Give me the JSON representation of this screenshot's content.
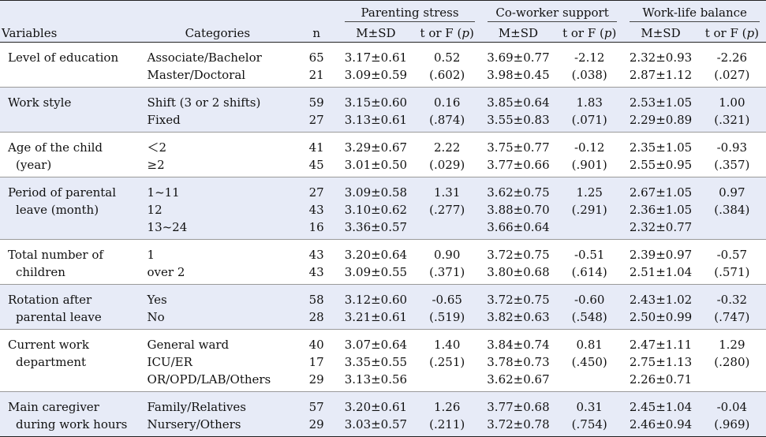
{
  "header": {
    "variables": "Variables",
    "categories": "Categories",
    "n": "n",
    "groups": [
      "Parenting stress",
      "Co-worker support",
      "Work-life balance"
    ],
    "msd": "M±SD",
    "test_prefix": "t or F (",
    "test_p": "p",
    "test_suffix": ")"
  },
  "rows": [
    {
      "variable": [
        "Level of education"
      ],
      "categories": [
        "Associate/Bachelor",
        "Master/Doctoral"
      ],
      "n": [
        "65",
        "21"
      ],
      "ps_msd": [
        "3.17±0.61",
        "3.09±0.59"
      ],
      "ps_t": [
        "0.52",
        "(.602)"
      ],
      "cs_msd": [
        "3.69±0.77",
        "3.98±0.45"
      ],
      "cs_t": [
        "-2.12",
        "(.038)"
      ],
      "wl_msd": [
        "2.32±0.93",
        "2.87±1.12"
      ],
      "wl_t": [
        "-2.26",
        "(.027)"
      ]
    },
    {
      "variable": [
        "Work style"
      ],
      "categories": [
        "Shift (3 or 2 shifts)",
        "Fixed"
      ],
      "n": [
        "59",
        "27"
      ],
      "ps_msd": [
        "3.15±0.60",
        "3.13±0.61"
      ],
      "ps_t": [
        "0.16",
        "(.874)"
      ],
      "cs_msd": [
        "3.85±0.64",
        "3.55±0.83"
      ],
      "cs_t": [
        "1.83",
        "(.071)"
      ],
      "wl_msd": [
        "2.53±1.05",
        "2.29±0.89"
      ],
      "wl_t": [
        "1.00",
        "(.321)"
      ]
    },
    {
      "variable": [
        "Age of the child",
        "(year)"
      ],
      "categories": [
        "＜2",
        "≥2"
      ],
      "n": [
        "41",
        "45"
      ],
      "ps_msd": [
        "3.29±0.67",
        "3.01±0.50"
      ],
      "ps_t": [
        "2.22",
        "(.029)"
      ],
      "cs_msd": [
        "3.75±0.77",
        "3.77±0.66"
      ],
      "cs_t": [
        "-0.12",
        "(.901)"
      ],
      "wl_msd": [
        "2.35±1.05",
        "2.55±0.95"
      ],
      "wl_t": [
        "-0.93",
        "(.357)"
      ]
    },
    {
      "variable": [
        "Period of parental",
        "leave (month)"
      ],
      "categories": [
        "1~11",
        "12",
        "13~24"
      ],
      "n": [
        "27",
        "43",
        "16"
      ],
      "ps_msd": [
        "3.09±0.58",
        "3.10±0.62",
        "3.36±0.57"
      ],
      "ps_t": [
        "1.31",
        "(.277)"
      ],
      "cs_msd": [
        "3.62±0.75",
        "3.88±0.70",
        "3.66±0.64"
      ],
      "cs_t": [
        "1.25",
        "(.291)"
      ],
      "wl_msd": [
        "2.67±1.05",
        "2.36±1.05",
        "2.32±0.77"
      ],
      "wl_t": [
        "0.97",
        "(.384)"
      ]
    },
    {
      "variable": [
        "Total number of",
        "children"
      ],
      "categories": [
        "1",
        "over 2"
      ],
      "n": [
        "43",
        "43"
      ],
      "ps_msd": [
        "3.20±0.64",
        "3.09±0.55"
      ],
      "ps_t": [
        "0.90",
        "(.371)"
      ],
      "cs_msd": [
        "3.72±0.75",
        "3.80±0.68"
      ],
      "cs_t": [
        "-0.51",
        "(.614)"
      ],
      "wl_msd": [
        "2.39±0.97",
        "2.51±1.04"
      ],
      "wl_t": [
        "-0.57",
        "(.571)"
      ]
    },
    {
      "variable": [
        "Rotation after",
        "parental leave"
      ],
      "categories": [
        "Yes",
        "No"
      ],
      "n": [
        "58",
        "28"
      ],
      "ps_msd": [
        "3.12±0.60",
        "3.21±0.61"
      ],
      "ps_t": [
        "-0.65",
        "(.519)"
      ],
      "cs_msd": [
        "3.72±0.75",
        "3.82±0.63"
      ],
      "cs_t": [
        "-0.60",
        "(.548)"
      ],
      "wl_msd": [
        "2.43±1.02",
        "2.50±0.99"
      ],
      "wl_t": [
        "-0.32",
        "(.747)"
      ]
    },
    {
      "variable": [
        "Current work",
        "department"
      ],
      "categories": [
        "General ward",
        "ICU/ER",
        "OR/OPD/LAB/Others"
      ],
      "n": [
        "40",
        "17",
        "29"
      ],
      "ps_msd": [
        "3.07±0.64",
        "3.35±0.55",
        "3.13±0.56"
      ],
      "ps_t": [
        "1.40",
        "(.251)"
      ],
      "cs_msd": [
        "3.84±0.74",
        "3.78±0.73",
        "3.62±0.67"
      ],
      "cs_t": [
        "0.81",
        "(.450)"
      ],
      "wl_msd": [
        "2.47±1.11",
        "2.75±1.13",
        "2.26±0.71"
      ],
      "wl_t": [
        "1.29",
        "(.280)"
      ]
    },
    {
      "variable": [
        "Main caregiver",
        "during work hours"
      ],
      "categories": [
        "Family/Relatives",
        "Nursery/Others"
      ],
      "n": [
        "57",
        "29"
      ],
      "ps_msd": [
        "3.20±0.61",
        "3.03±0.57"
      ],
      "ps_t": [
        "1.26",
        "(.211)"
      ],
      "cs_msd": [
        "3.77±0.68",
        "3.72±0.78"
      ],
      "cs_t": [
        "0.31",
        "(.754)"
      ],
      "wl_msd": [
        "2.45±1.04",
        "2.46±0.94"
      ],
      "wl_t": [
        "-0.04",
        "(.969)"
      ]
    }
  ]
}
